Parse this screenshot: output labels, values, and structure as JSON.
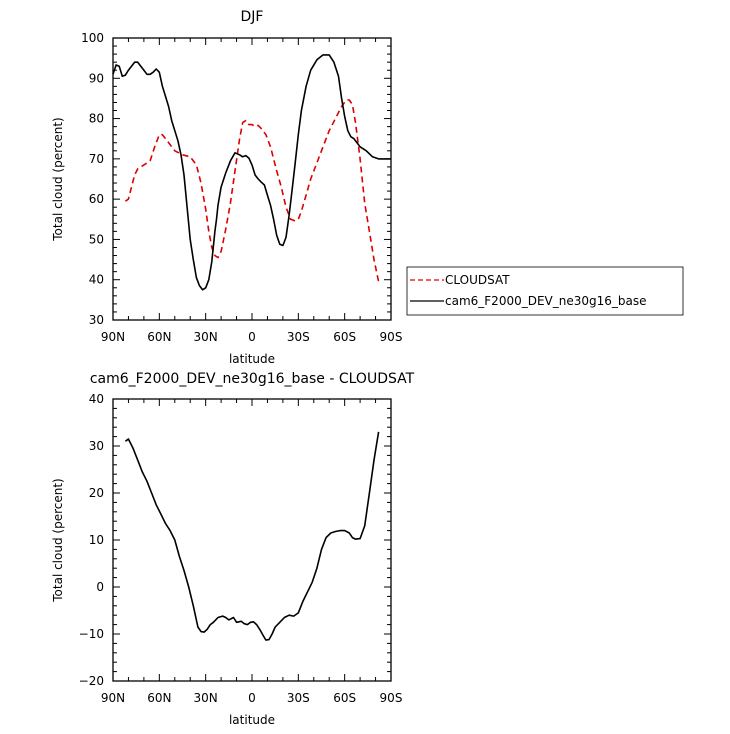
{
  "chart_data": [
    {
      "type": "line",
      "title": "DJF",
      "xlabel": "latitude",
      "ylabel": "Total cloud (percent)",
      "xlim": [
        -90,
        90
      ],
      "ylim": [
        30,
        100
      ],
      "xticks": [
        -90,
        -60,
        -30,
        0,
        30,
        60,
        90
      ],
      "xtick_labels": [
        "90N",
        "60N",
        "30N",
        "0",
        "30S",
        "60S",
        "90S"
      ],
      "yticks": [
        30,
        40,
        50,
        60,
        70,
        80,
        90,
        100
      ],
      "ytick_labels": [
        "30",
        "40",
        "50",
        "60",
        "70",
        "80",
        "90",
        "100"
      ],
      "grid": false,
      "legend_position": "right-outside",
      "series": [
        {
          "name": "CLOUDSAT",
          "color": "#dd0000",
          "style": "dashed",
          "x": [
            -82,
            -80,
            -78,
            -76,
            -74,
            -70,
            -66,
            -63,
            -60,
            -58,
            -55,
            -50,
            -45,
            -40,
            -36,
            -33,
            -30,
            -28,
            -26,
            -24,
            -22,
            -20,
            -17,
            -14,
            -11,
            -8,
            -6,
            -4,
            -2,
            0,
            2,
            4,
            6,
            9,
            12,
            16,
            19,
            22,
            25,
            28,
            30,
            32,
            35,
            38,
            42,
            46,
            50,
            54,
            58,
            61,
            63,
            65,
            67,
            70,
            73,
            76,
            79,
            82
          ],
          "y": [
            59.5,
            60,
            63,
            66,
            67.5,
            68.5,
            69.5,
            73,
            76,
            76,
            74.5,
            72,
            71,
            70.5,
            68.5,
            64,
            57.5,
            52,
            48,
            46,
            45.5,
            47,
            52.5,
            59,
            67,
            75,
            79,
            79.5,
            78.5,
            78.5,
            78,
            78.3,
            77.5,
            76,
            73,
            67,
            63,
            58,
            55,
            54.6,
            55,
            57,
            61,
            65,
            69,
            73,
            77,
            80,
            83,
            84.6,
            84.6,
            83.5,
            79,
            70,
            59,
            52,
            45,
            39.5
          ]
        },
        {
          "name": "cam6_F2000_DEV_ne30g16_base",
          "color": "#000000",
          "style": "solid",
          "x": [
            -90,
            -88,
            -86,
            -84,
            -82,
            -80,
            -78,
            -76,
            -74,
            -72,
            -70,
            -68,
            -66,
            -64,
            -62,
            -60,
            -58,
            -56,
            -54,
            -52,
            -50,
            -48,
            -46,
            -44,
            -42,
            -40,
            -38,
            -36,
            -34,
            -32,
            -30,
            -28,
            -26,
            -24,
            -23,
            -22,
            -20,
            -17,
            -14,
            -11,
            -8,
            -6,
            -4,
            -2,
            0,
            2,
            4,
            6,
            8,
            10,
            12,
            14,
            16,
            18,
            20,
            22,
            24,
            26,
            28,
            30,
            32,
            35,
            38,
            42,
            46,
            50,
            53,
            56,
            58,
            60,
            62,
            64,
            66,
            68,
            70,
            74,
            78,
            82,
            86,
            90
          ],
          "y": [
            91,
            93.3,
            93,
            90.5,
            90.8,
            92,
            93,
            94,
            94,
            93,
            92,
            91,
            91,
            91.5,
            92.3,
            91.5,
            88,
            85.5,
            83,
            79.5,
            77,
            74.5,
            71,
            66,
            58,
            50,
            45,
            40.5,
            38.5,
            37.5,
            38,
            40,
            44.5,
            52,
            55,
            58.5,
            63,
            66.5,
            69.5,
            71.5,
            71,
            70.5,
            70.8,
            70.2,
            68.5,
            66,
            65,
            64.2,
            63.5,
            61,
            58.5,
            55,
            51,
            48.8,
            48.5,
            50.5,
            56,
            62.5,
            69,
            76,
            82,
            88,
            92,
            94.6,
            95.8,
            95.8,
            94,
            90.5,
            85,
            80.5,
            77,
            75.5,
            75,
            74,
            73,
            72,
            70.5,
            70,
            70,
            70
          ]
        }
      ]
    },
    {
      "type": "line",
      "title": "cam6_F2000_DEV_ne30g16_base - CLOUDSAT",
      "xlabel": "latitude",
      "ylabel": "Total cloud (percent)",
      "xlim": [
        -90,
        90
      ],
      "ylim": [
        -20,
        40
      ],
      "xticks": [
        -90,
        -60,
        -30,
        0,
        30,
        60,
        90
      ],
      "xtick_labels": [
        "90N",
        "60N",
        "30N",
        "0",
        "30S",
        "60S",
        "90S"
      ],
      "yticks": [
        -20,
        -10,
        0,
        10,
        20,
        30,
        40
      ],
      "ytick_labels": [
        "−20",
        "−10",
        "0",
        "10",
        "20",
        "30",
        "40"
      ],
      "grid": false,
      "series": [
        {
          "color": "#000000",
          "style": "solid",
          "x": [
            -82,
            -80,
            -77,
            -74,
            -71,
            -68,
            -65,
            -62,
            -59,
            -56,
            -53,
            -50,
            -47,
            -44,
            -41,
            -38,
            -35,
            -33,
            -31,
            -29,
            -27,
            -25,
            -22,
            -19,
            -17,
            -15,
            -12,
            -10,
            -7,
            -5,
            -3,
            -1,
            1,
            3,
            5,
            7,
            9,
            11,
            13,
            15,
            18,
            21,
            24,
            27,
            30,
            33,
            36,
            39,
            42,
            45,
            48,
            51,
            54,
            57,
            60,
            63,
            65,
            67,
            70,
            73,
            76,
            79,
            82
          ],
          "y": [
            31,
            31.5,
            29.5,
            27,
            24.5,
            22.5,
            20,
            17.5,
            15.5,
            13.5,
            12,
            10,
            6.5,
            3.5,
            0,
            -4,
            -8.5,
            -9.5,
            -9.6,
            -9,
            -8,
            -7.5,
            -6.5,
            -6.2,
            -6.5,
            -7,
            -6.5,
            -7.5,
            -7.3,
            -7.8,
            -8,
            -7.5,
            -7.4,
            -8,
            -9,
            -10.2,
            -11.3,
            -11.2,
            -10,
            -8.5,
            -7.5,
            -6.5,
            -6,
            -6.2,
            -5.5,
            -3,
            -1,
            1,
            4,
            8,
            10.5,
            11.5,
            11.8,
            12,
            12,
            11.5,
            10.5,
            10.2,
            10.3,
            13,
            20,
            27,
            33
          ]
        }
      ]
    }
  ]
}
